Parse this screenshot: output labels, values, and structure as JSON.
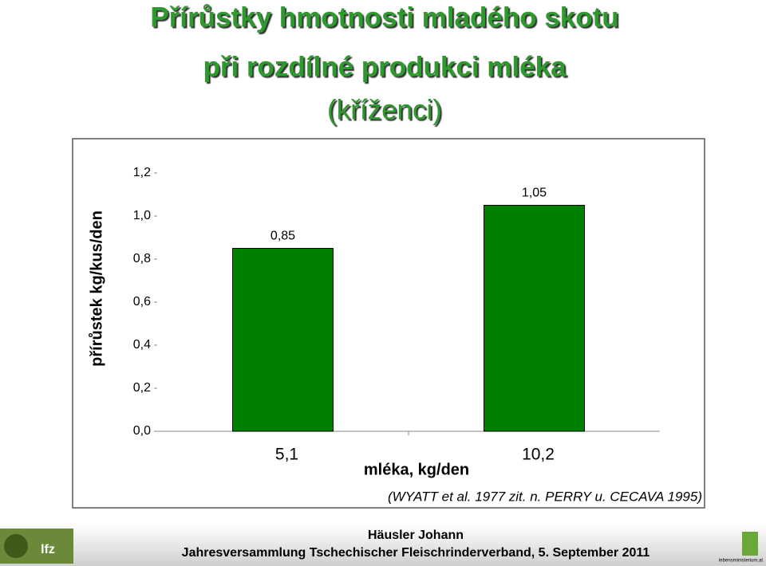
{
  "chart_data": {
    "type": "bar",
    "title": [
      "Přírůstky hmotnosti mladého skotu",
      "při rozdílné produkci mléka",
      "(kříženci)"
    ],
    "y_label": "přírůstek kg/kus/den",
    "x_label": "mléka, kg/den",
    "source": "(WYATT et al. 1977 zit. n. PERRY u. CECAVA  1995)",
    "categories": [
      "5,1",
      "10,2"
    ],
    "values": [
      0.85,
      1.05
    ],
    "value_labels": [
      "0,85",
      "1,05"
    ],
    "color": "#008000",
    "ylim": [
      0,
      1.2
    ],
    "yticks": [
      {
        "value": 0,
        "label": "0,0"
      },
      {
        "value": 0.2,
        "label": "0,2"
      },
      {
        "value": 0.4,
        "label": "0,4"
      },
      {
        "value": 0.6,
        "label": "0,6"
      },
      {
        "value": 0.8,
        "label": "0,8"
      },
      {
        "value": 1,
        "label": "1,0"
      },
      {
        "value": 1.2,
        "label": "1,2"
      }
    ]
  },
  "footer": {
    "author": "Häusler Johann",
    "event": "Jahresversammlung Tschechischer Fleischrinderverband, 5. September 2011",
    "logo_left": "lfz",
    "logo_right": "lebensministerium.at"
  }
}
